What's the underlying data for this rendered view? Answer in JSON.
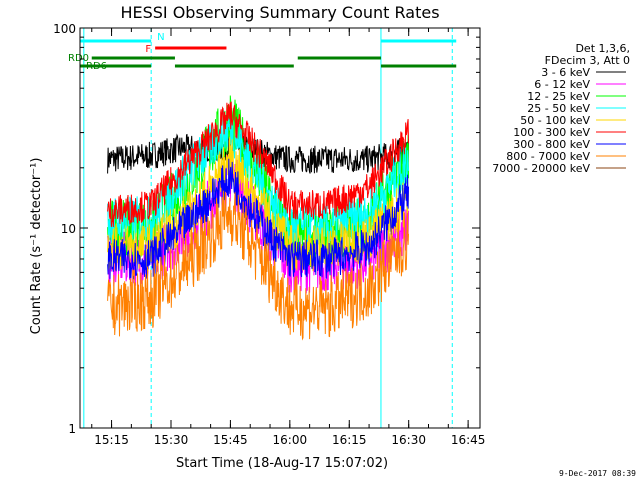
{
  "chart_data": {
    "type": "line",
    "title": "HESSI Observing Summary Count Rates",
    "xlabel": "Start Time (18-Aug-17 15:07:02)",
    "ylabel": "Count Rate (s⁻¹ detector⁻¹)",
    "y_scale": "log",
    "ylim": [
      1,
      100
    ],
    "xlim": [
      "15:07:02",
      "16:48:00"
    ],
    "x_ticks": [
      "15:15",
      "15:30",
      "15:45",
      "16:00",
      "16:15",
      "16:30",
      "16:45"
    ],
    "y_ticks": [
      "1",
      "10",
      "100"
    ],
    "legend": {
      "position": "right",
      "header": [
        "Det 1,3,6,",
        "FDecim 3, Att 0"
      ],
      "entries": [
        {
          "label": "3 - 6 keV",
          "color": "#000000"
        },
        {
          "label": "6 - 12 keV",
          "color": "#ff00ff"
        },
        {
          "label": "12 - 25 keV",
          "color": "#00ff00"
        },
        {
          "label": "25 - 50 keV",
          "color": "#00ffff"
        },
        {
          "label": "50 - 100 keV",
          "color": "#ffd700"
        },
        {
          "label": "100 - 300 keV",
          "color": "#ff0000"
        },
        {
          "label": "300 - 800 keV",
          "color": "#0000ff"
        },
        {
          "label": "800 - 7000 keV",
          "color": "#ff8000"
        },
        {
          "label": "7000 - 20000 keV",
          "color": "#8b4513"
        }
      ]
    },
    "series": [
      {
        "name": "3 - 6 keV",
        "color": "#000000",
        "start": "15:14",
        "end": "16:30",
        "noise": 0.07,
        "points": [
          [
            "15:14",
            22
          ],
          [
            "15:25",
            23
          ],
          [
            "15:32",
            25
          ],
          [
            "15:40",
            25
          ],
          [
            "15:44",
            25
          ],
          [
            "15:50",
            25
          ],
          [
            "15:55",
            23
          ],
          [
            "16:00",
            22
          ],
          [
            "16:10",
            22
          ],
          [
            "16:20",
            22
          ],
          [
            "16:25",
            23
          ],
          [
            "16:30",
            25
          ]
        ]
      },
      {
        "name": "6 - 12 keV",
        "color": "#ff00ff",
        "start": "15:14",
        "end": "16:30",
        "noise": 0.14,
        "points": [
          [
            "15:14",
            7
          ],
          [
            "15:25",
            7
          ],
          [
            "15:35",
            10
          ],
          [
            "15:45",
            18
          ],
          [
            "15:55",
            9
          ],
          [
            "16:00",
            6.5
          ],
          [
            "16:10",
            6.5
          ],
          [
            "16:20",
            7
          ],
          [
            "16:30",
            10
          ]
        ]
      },
      {
        "name": "12 - 25 keV",
        "color": "#00ff00",
        "start": "15:14",
        "end": "16:30",
        "noise": 0.15,
        "points": [
          [
            "15:14",
            10
          ],
          [
            "15:25",
            10
          ],
          [
            "15:35",
            18
          ],
          [
            "15:45",
            35
          ],
          [
            "15:55",
            14
          ],
          [
            "16:00",
            9
          ],
          [
            "16:10",
            9
          ],
          [
            "16:20",
            11
          ],
          [
            "16:30",
            22
          ]
        ]
      },
      {
        "name": "25 - 50 keV",
        "color": "#00ffff",
        "start": "15:14",
        "end": "16:30",
        "noise": 0.12,
        "points": [
          [
            "15:14",
            11
          ],
          [
            "15:25",
            11
          ],
          [
            "15:35",
            20
          ],
          [
            "15:45",
            32
          ],
          [
            "15:55",
            14
          ],
          [
            "16:00",
            10
          ],
          [
            "16:10",
            10
          ],
          [
            "16:20",
            12
          ],
          [
            "16:30",
            22
          ]
        ]
      },
      {
        "name": "50 - 100 keV",
        "color": "#ffd700",
        "start": "15:14",
        "end": "16:30",
        "noise": 0.12,
        "points": [
          [
            "15:14",
            8
          ],
          [
            "15:25",
            8
          ],
          [
            "15:35",
            12
          ],
          [
            "15:45",
            22
          ],
          [
            "15:55",
            11
          ],
          [
            "16:00",
            8
          ],
          [
            "16:10",
            8
          ],
          [
            "16:20",
            9
          ],
          [
            "16:30",
            14
          ]
        ]
      },
      {
        "name": "100 - 300 keV",
        "color": "#ff0000",
        "start": "15:14",
        "end": "16:30",
        "noise": 0.08,
        "points": [
          [
            "15:14",
            12
          ],
          [
            "15:25",
            13
          ],
          [
            "15:35",
            22
          ],
          [
            "15:45",
            37
          ],
          [
            "15:55",
            20
          ],
          [
            "16:00",
            13
          ],
          [
            "16:10",
            13
          ],
          [
            "16:20",
            16
          ],
          [
            "16:30",
            30
          ]
        ]
      },
      {
        "name": "300 - 800 keV",
        "color": "#0000ff",
        "start": "15:14",
        "end": "16:30",
        "noise": 0.1,
        "points": [
          [
            "15:14",
            7
          ],
          [
            "15:25",
            7
          ],
          [
            "15:35",
            11
          ],
          [
            "15:45",
            18
          ],
          [
            "15:55",
            9
          ],
          [
            "16:00",
            7
          ],
          [
            "16:10",
            7
          ],
          [
            "16:20",
            8
          ],
          [
            "16:30",
            15
          ]
        ]
      },
      {
        "name": "800 - 7000 keV",
        "color": "#ff8000",
        "start": "15:14",
        "end": "16:30",
        "noise": 0.16,
        "points": [
          [
            "15:14",
            4
          ],
          [
            "15:25",
            4.5
          ],
          [
            "15:35",
            7
          ],
          [
            "15:45",
            12
          ],
          [
            "15:55",
            6
          ],
          [
            "16:00",
            4
          ],
          [
            "16:10",
            4
          ],
          [
            "16:20",
            5
          ],
          [
            "16:30",
            9
          ]
        ]
      }
    ],
    "flag_bars": [
      {
        "label": "N",
        "color": "#00ffff",
        "row": 1,
        "segments": [
          [
            "15:07:02",
            "15:25"
          ],
          [
            "16:23",
            "16:42"
          ]
        ]
      },
      {
        "label": "F",
        "color": "#ff0000",
        "row": 2,
        "segments": [
          [
            "15:26",
            "15:44"
          ]
        ]
      },
      {
        "label": "RD0",
        "color": "#008000",
        "row": 3,
        "segments": [
          [
            "15:10",
            "15:31"
          ],
          [
            "16:02",
            "16:23"
          ]
        ]
      },
      {
        "label": "RD6",
        "color": "#008000",
        "row": 4,
        "segments": [
          [
            "15:07:02",
            "15:25"
          ],
          [
            "15:31",
            "16:01"
          ],
          [
            "16:23",
            "16:42"
          ]
        ]
      }
    ],
    "vlines": [
      {
        "time": "15:08",
        "style": "solid"
      },
      {
        "time": "15:25",
        "style": "dashed"
      },
      {
        "time": "16:23",
        "style": "solid"
      },
      {
        "time": "16:41",
        "style": "dashed"
      }
    ]
  },
  "footer": {
    "date_stamp": "9-Dec-2017 08:39"
  }
}
